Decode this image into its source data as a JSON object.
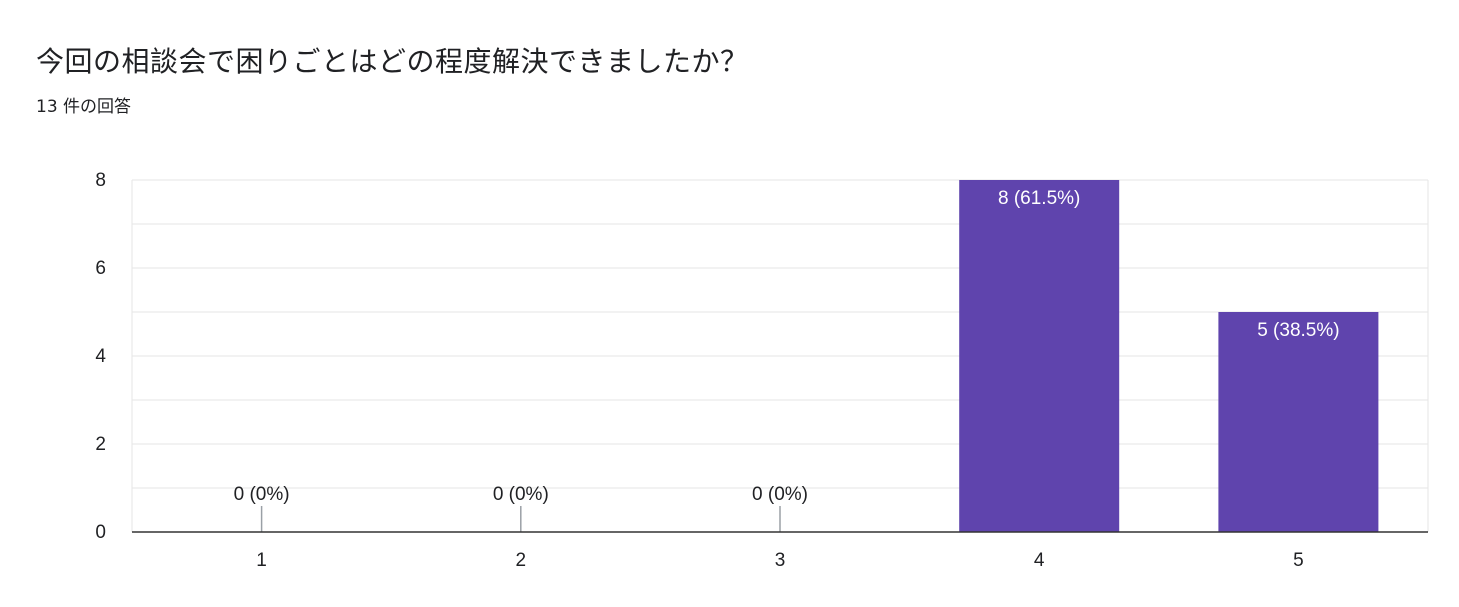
{
  "question": {
    "title": "今回の相談会で困りごとはどの程度解決できましたか？",
    "response_count": "13 件の回答"
  },
  "colors": {
    "bar": "#5f44ad",
    "gridline": "#e6e6e6",
    "axis": "#333333",
    "label": "#202124",
    "bar_label_inside": "#ffffff"
  },
  "chart_data": {
    "type": "bar",
    "categories": [
      "1",
      "2",
      "3",
      "4",
      "5"
    ],
    "values": [
      0,
      0,
      0,
      8,
      5
    ],
    "data_labels": [
      "0 (0%)",
      "0 (0%)",
      "0 (0%)",
      "8 (61.5%)",
      "5 (38.5%)"
    ],
    "ylim": [
      0,
      8
    ],
    "yticks": [
      0,
      2,
      4,
      6,
      8
    ],
    "grid": true
  }
}
